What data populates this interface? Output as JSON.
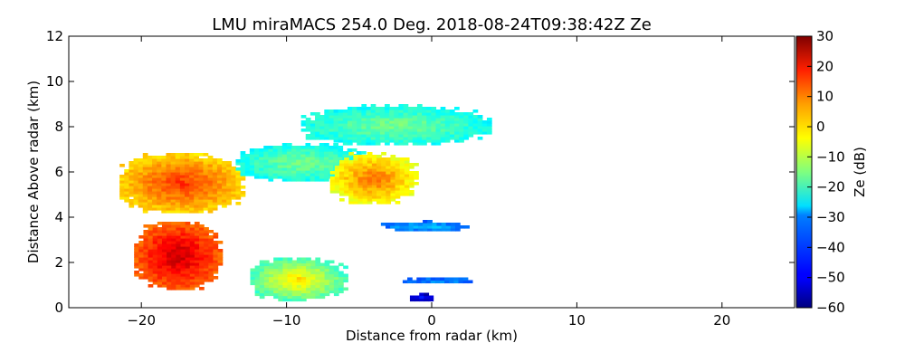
{
  "chart_data": {
    "type": "heatmap",
    "title": "LMU miraMACS 254.0 Deg. 2018-08-24T09:38:42Z  Ze",
    "xlabel": "Distance from radar (km)",
    "ylabel": "Distance Above radar  (km)",
    "xlim": [
      -25,
      25
    ],
    "ylim": [
      0,
      12
    ],
    "xticks": [
      -20,
      -10,
      0,
      10,
      20
    ],
    "xtick_labels": [
      "−20",
      "−10",
      "0",
      "10",
      "20"
    ],
    "yticks": [
      0,
      2,
      4,
      6,
      8,
      10,
      12
    ],
    "ytick_labels": [
      "0",
      "2",
      "4",
      "6",
      "8",
      "10",
      "12"
    ],
    "grid": false,
    "colorbar": {
      "label": "Ze (dB)",
      "colormap": "jet",
      "range": [
        -60,
        30
      ],
      "ticks": [
        30,
        20,
        10,
        0,
        -10,
        -20,
        -30,
        -40,
        -50,
        -60
      ],
      "tick_labels": [
        "30",
        "20",
        "10",
        "0",
        "−10",
        "−20",
        "−30",
        "−40",
        "−50",
        "−60"
      ]
    },
    "echo_regions": [
      {
        "x": [
          -21.5,
          -13.0
        ],
        "y": [
          4.2,
          6.8
        ],
        "ze": [
          0,
          15
        ],
        "desc": "upper-left band"
      },
      {
        "x": [
          -20.5,
          -14.5
        ],
        "y": [
          0.8,
          3.8
        ],
        "ze": [
          10,
          25
        ],
        "desc": "lower-left core"
      },
      {
        "x": [
          -13.5,
          -4.5
        ],
        "y": [
          5.6,
          7.2
        ],
        "ze": [
          -25,
          -15
        ]
      },
      {
        "x": [
          -9.0,
          4.0
        ],
        "y": [
          7.2,
          8.9
        ],
        "ze": [
          -25,
          -15
        ]
      },
      {
        "x": [
          -7.0,
          -1.0
        ],
        "y": [
          4.6,
          6.8
        ],
        "ze": [
          -5,
          10
        ]
      },
      {
        "x": [
          -3.5,
          2.5
        ],
        "y": [
          3.4,
          3.8
        ],
        "ze": [
          -40,
          -30
        ]
      },
      {
        "x": [
          -12.5,
          -6.0
        ],
        "y": [
          0.3,
          2.2
        ],
        "ze": [
          -20,
          0
        ]
      },
      {
        "x": [
          -2.0,
          3.0
        ],
        "y": [
          1.1,
          1.3
        ],
        "ze": [
          -40,
          -35
        ]
      },
      {
        "x": [
          -1.5,
          0.2
        ],
        "y": [
          0.3,
          0.6
        ],
        "ze": [
          -55,
          -45
        ]
      }
    ]
  }
}
